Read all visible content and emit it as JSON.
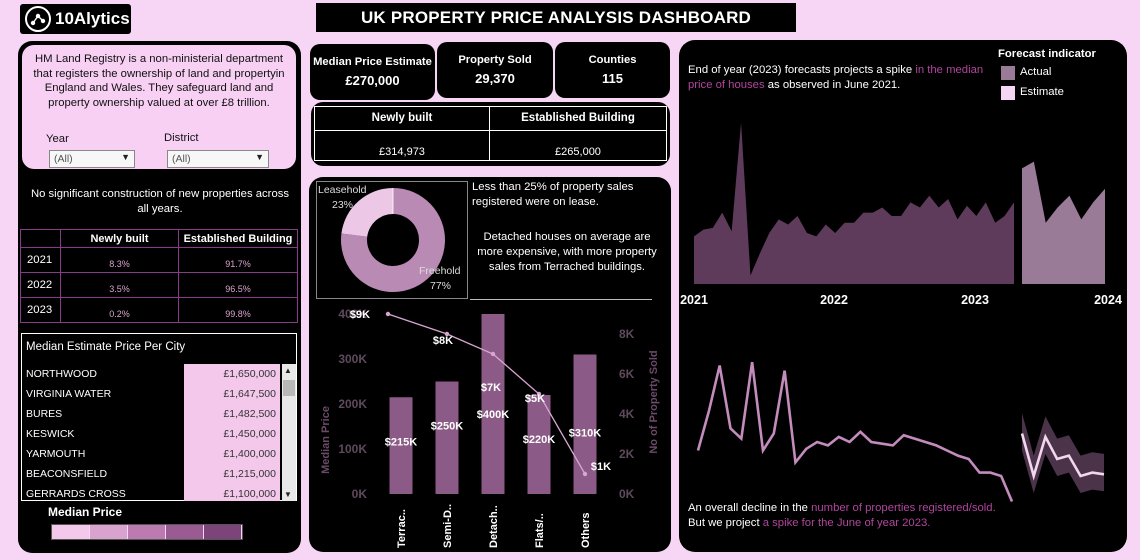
{
  "brand": {
    "logo_text": "10Alytics"
  },
  "title": "UK PROPERTY PRICE ANALYSIS DASHBOARD",
  "info": {
    "text": "HM Land Registry is a non-ministerial department that registers  the ownership of land and propertyin England and Wales. They safeguard land and property ownership valued at over £8 trillion."
  },
  "filters": {
    "year_label": "Year",
    "year_value": "(All)",
    "district_label": "District",
    "district_value": "(All)"
  },
  "construction_note": "No significant construction of new properties across all years.",
  "year_table": {
    "headers": [
      "",
      "Newly built",
      "Established Building"
    ],
    "rows": [
      {
        "year": "2021",
        "new": "8.3%",
        "est": "91.7%"
      },
      {
        "year": "2022",
        "new": "3.5%",
        "est": "96.5%"
      },
      {
        "year": "2023",
        "new": "0.2%",
        "est": "99.8%"
      }
    ]
  },
  "city_table": {
    "title": "Median Estimate Price Per City",
    "rows": [
      {
        "city": "NORTHWOOD",
        "price": "£1,650,000"
      },
      {
        "city": "VIRGINIA WATER",
        "price": "£1,647,500"
      },
      {
        "city": "BURES",
        "price": "£1,482,500"
      },
      {
        "city": "KESWICK",
        "price": "£1,450,000"
      },
      {
        "city": "YARMOUTH",
        "price": "£1,400,000"
      },
      {
        "city": "BEACONSFIELD",
        "price": "£1,215,000"
      },
      {
        "city": "GERRARDS CROSS",
        "price": "£1,100,000"
      }
    ]
  },
  "legend_median": {
    "label": "Median Price",
    "colors": [
      "#f3c8ea",
      "#d9a3cf",
      "#bb7bb1",
      "#9a5a92",
      "#7d4479"
    ]
  },
  "kpis": [
    {
      "label": "Median Price Estimate",
      "value": "£270,000"
    },
    {
      "label": "Property Sold",
      "value": "29,370"
    },
    {
      "label": "Counties",
      "value": "115"
    }
  ],
  "build_type": {
    "headers": [
      "Newly built",
      "Established Building"
    ],
    "values": [
      "£314,973",
      "£265,000"
    ]
  },
  "tenure": {
    "leasehold_label": "Leasehold",
    "leasehold_pct": "23%",
    "freehold_label": "Freehold",
    "freehold_pct": "77%",
    "leasehold_share": 0.23,
    "colors": {
      "leasehold": "#ecc8e6",
      "freehold": "#b98ab3"
    }
  },
  "insights": {
    "lease_note": "Less than 25% of property sales registered were on lease.",
    "detached_note": "Detached houses on average are more expensive, with more property sales from Terrached buildings."
  },
  "chart_data": [
    {
      "type": "bar",
      "categories": [
        "Terrac..",
        "Semi-D..",
        "Detach..",
        "Flats/..",
        "Others"
      ],
      "series": [
        {
          "name": "Median Price",
          "values": [
            215000,
            250000,
            400000,
            220000,
            310000
          ],
          "labels": [
            "$215K",
            "$250K",
            "$400K",
            "$220K",
            "$310K"
          ]
        },
        {
          "name": "No of Property Sold",
          "values": [
            9000,
            8000,
            7000,
            5000,
            1000
          ],
          "labels": [
            "$9K",
            "$8K",
            "$7K",
            "$5K",
            "$1K"
          ]
        }
      ],
      "ylabel": "Median Price",
      "y2label": "No of Property Sold",
      "ylim": [
        0,
        400000
      ],
      "y2lim": [
        0,
        9000
      ],
      "yticks": [
        "0K",
        "100K",
        "200K",
        "300K",
        "400K"
      ],
      "y2ticks": [
        "0K",
        "2K",
        "4K",
        "6K",
        "8K"
      ],
      "colors": {
        "bar": "#8b5a86",
        "line": "#d9a6d2"
      }
    },
    {
      "type": "area",
      "title": "End of year (2023) forecasts projects a spike in the median price of houses as observed in June 2021.",
      "title_plain_a": "End of year (2023) forecasts projects a spike ",
      "title_pink": "in the median price of houses",
      "title_plain_b": " as observed in June 2021.",
      "legend_title": "Forecast indicator",
      "legend": [
        "Actual",
        "Estimate"
      ],
      "xticks": [
        "2021",
        "2022",
        "2023",
        "2024"
      ],
      "actual": [
        0.28,
        0.32,
        0.33,
        0.42,
        0.31,
        0.95,
        0.05,
        0.18,
        0.3,
        0.38,
        0.35,
        0.4,
        0.3,
        0.28,
        0.35,
        0.3,
        0.36,
        0.36,
        0.42,
        0.42,
        0.45,
        0.4,
        0.4,
        0.48,
        0.45,
        0.52,
        0.45,
        0.5,
        0.38,
        0.46,
        0.4,
        0.48,
        0.36,
        0.4,
        0.48
      ],
      "estimate": [
        0.68,
        0.72,
        0.36,
        0.45,
        0.52,
        0.38,
        0.48,
        0.56
      ],
      "colors": {
        "actual": "#5e3a5b",
        "estimate": "#9a7b97"
      }
    },
    {
      "type": "line",
      "caption_plain_a": "An overall decline in the ",
      "caption_pink_a": "number of properties registered/sold.",
      "caption_plain_b": "But we project ",
      "caption_pink_b": "a spike for the June of year 2023.",
      "actual": [
        0.35,
        0.58,
        0.85,
        0.48,
        0.42,
        0.87,
        0.35,
        0.45,
        0.82,
        0.28,
        0.36,
        0.4,
        0.38,
        0.43,
        0.4,
        0.46,
        0.4,
        0.39,
        0.38,
        0.44,
        0.42,
        0.4,
        0.38,
        0.35,
        0.32,
        0.3,
        0.22,
        0.22,
        0.2,
        0.05
      ],
      "estimate": [
        0.45,
        0.2,
        0.43,
        0.3,
        0.32,
        0.2,
        0.22,
        0.21
      ],
      "colors": {
        "line": "#c48bbd",
        "band": "#4b3449"
      }
    }
  ]
}
